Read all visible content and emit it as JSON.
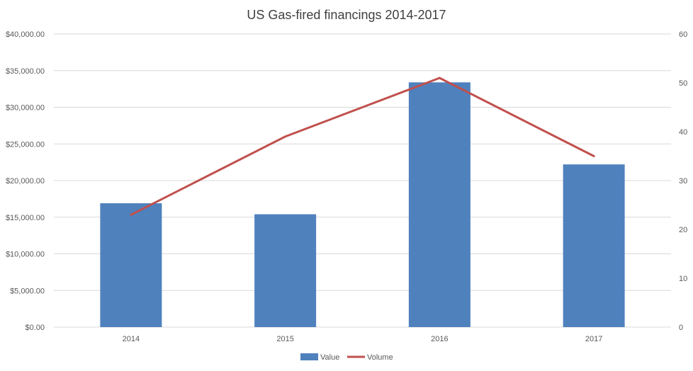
{
  "chart_data": {
    "type": "bar",
    "title": "US Gas-fired financings 2014-2017",
    "categories": [
      "2014",
      "2015",
      "2016",
      "2017"
    ],
    "series": [
      {
        "name": "Value",
        "type": "bar",
        "axis": "left",
        "color": "#4f81bd",
        "values": [
          16900,
          15400,
          33400,
          22200
        ]
      },
      {
        "name": "Volume",
        "type": "line",
        "axis": "right",
        "color": "#c0504d",
        "values": [
          23,
          39,
          51,
          35
        ]
      }
    ],
    "y_left": {
      "min": 0,
      "max": 40000,
      "step": 5000,
      "tick_labels": [
        "$0.00",
        "$5,000.00",
        "$10,000.00",
        "$15,000.00",
        "$20,000.00",
        "$25,000.00",
        "$30,000.00",
        "$35,000.00",
        "$40,000.00"
      ]
    },
    "y_right": {
      "min": 0,
      "max": 60,
      "step": 10,
      "tick_labels": [
        "0",
        "10",
        "20",
        "30",
        "40",
        "50",
        "60"
      ]
    },
    "grid": true,
    "legend": {
      "position": "bottom",
      "entries": [
        "Value",
        "Volume"
      ]
    }
  }
}
